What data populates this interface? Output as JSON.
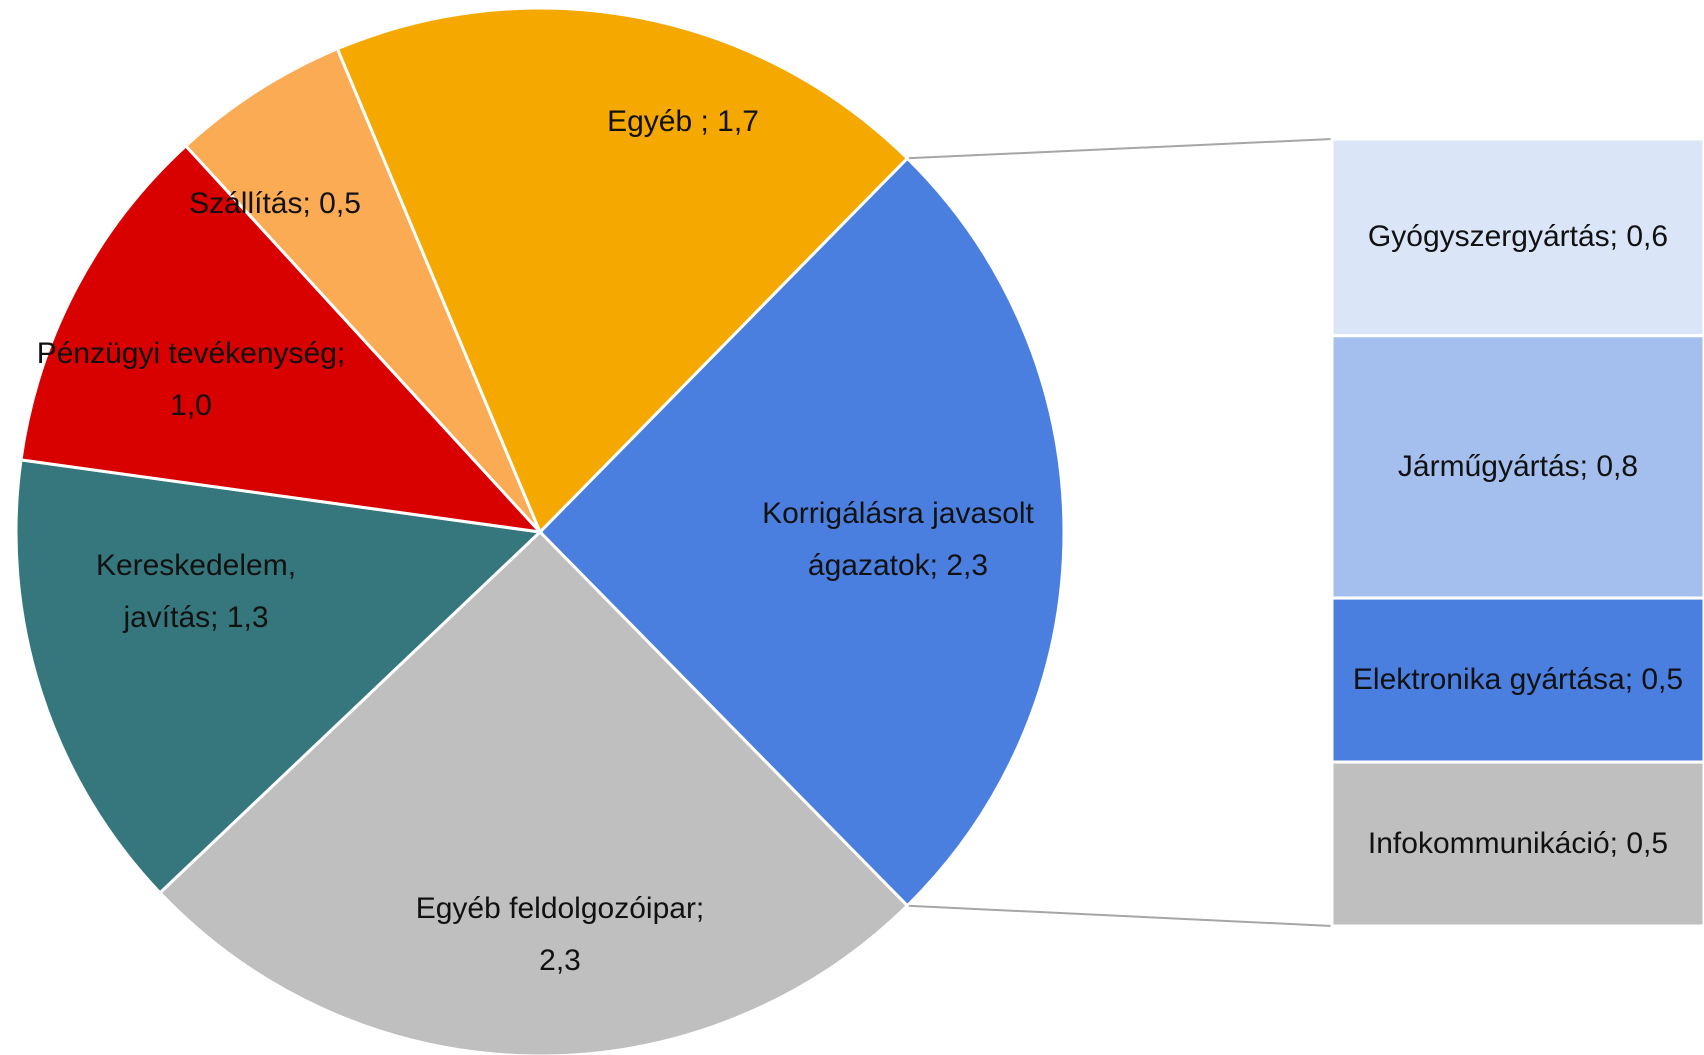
{
  "chart_data": [
    {
      "type": "pie",
      "categories": [
        "Korrigálásra javasolt ágazatok;",
        "Egyéb feldolgozóipar;",
        "Kereskedelem, javítás;",
        "Pénzügyi tevékenység;",
        "Szállítás;",
        "Egyéb ;"
      ],
      "values": [
        2.3,
        2.3,
        1.3,
        1.0,
        0.5,
        1.7
      ],
      "value_labels": [
        "2,3",
        "2,3",
        "1,3",
        "1,0",
        "0,5",
        "1,7"
      ],
      "colors": [
        "#4a7fe0",
        "#bfbfbf",
        "#36777e",
        "#d90000",
        "#fbab54",
        "#f5a800"
      ]
    },
    {
      "type": "bar",
      "categories": [
        "Gyógyszergyártás;",
        "Járműgyártás;",
        "Elektronika gyártása;",
        "Infokommunikáció;"
      ],
      "values": [
        0.6,
        0.8,
        0.5,
        0.5
      ],
      "value_labels": [
        "0,6",
        "0,8",
        "0,5",
        "0,5"
      ],
      "colors": [
        "#dae5f7",
        "#a4bfee",
        "#4a7fe0",
        "#bfbfbf"
      ]
    }
  ]
}
